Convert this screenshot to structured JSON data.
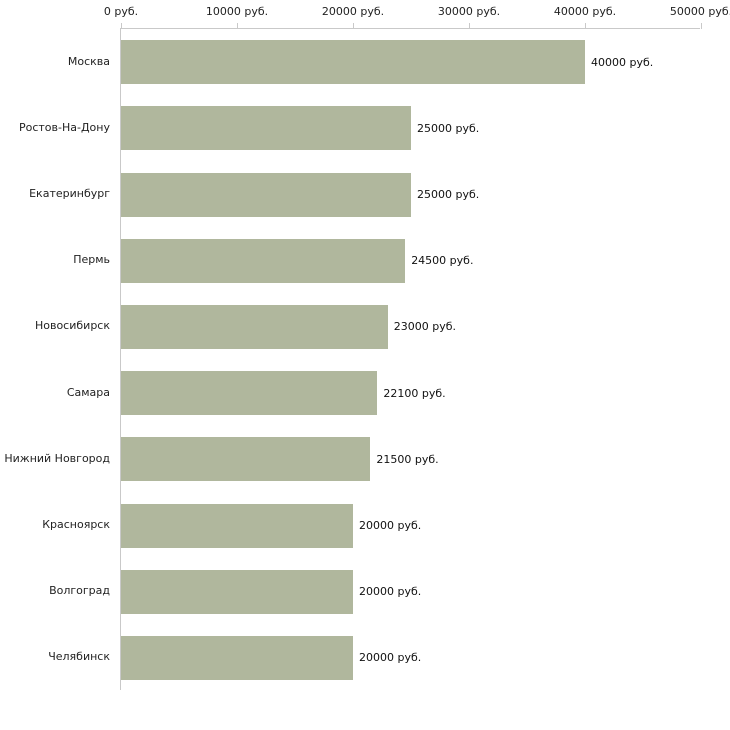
{
  "chart_data": {
    "type": "bar",
    "orientation": "horizontal",
    "title": "",
    "xlabel": "",
    "ylabel": "",
    "categories": [
      "Москва",
      "Ростов-На-Дону",
      "Екатеринбург",
      "Пермь",
      "Новосибирск",
      "Самара",
      "Нижний Новгород",
      "Красноярск",
      "Волгоград",
      "Челябинск"
    ],
    "values": [
      40000,
      25000,
      25000,
      24500,
      23000,
      22100,
      21500,
      20000,
      20000,
      20000
    ],
    "value_labels": [
      "40000 руб.",
      "25000 руб.",
      "25000 руб.",
      "24500 руб.",
      "23000 руб.",
      "22100 руб.",
      "21500 руб.",
      "20000 руб.",
      "20000 руб.",
      "20000 руб."
    ],
    "x_ticks": [
      0,
      10000,
      20000,
      30000,
      40000,
      50000
    ],
    "x_tick_labels": [
      "0 руб.",
      "10000 руб.",
      "20000 руб.",
      "30000 руб.",
      "40000 руб.",
      "50000 руб."
    ],
    "xlim": [
      0,
      50000
    ],
    "grid": false,
    "legend_position": "none",
    "bar_color": "#b0b79d",
    "axis_color": "#c9c9c9",
    "text_color": "#222222",
    "background_color": "#ffffff"
  }
}
